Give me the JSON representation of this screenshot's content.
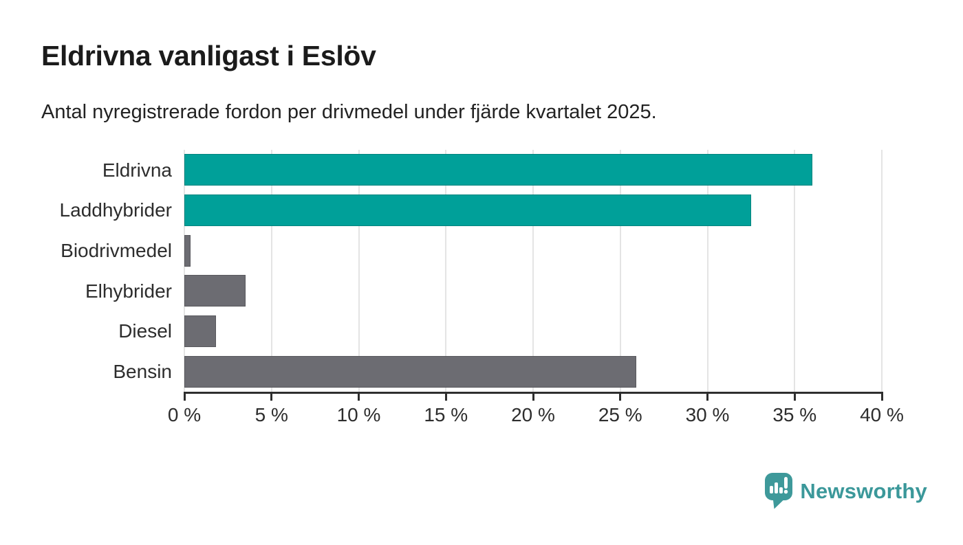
{
  "header": {
    "title": "Eldrivna vanligast i Eslöv",
    "subtitle": "Antal nyregistrerade fordon per drivmedel under fjärde kvartalet 2025."
  },
  "chart_data": {
    "type": "bar",
    "orientation": "horizontal",
    "title": "Eldrivna vanligast i Eslöv",
    "subtitle": "Antal nyregistrerade fordon per drivmedel under fjärde kvartalet 2025.",
    "categories": [
      "Eldrivna",
      "Laddhybrider",
      "Biodrivmedel",
      "Elhybrider",
      "Diesel",
      "Bensin"
    ],
    "values": [
      36.0,
      32.5,
      0.35,
      3.5,
      1.8,
      25.9
    ],
    "unit": "%",
    "xlim": [
      0,
      40
    ],
    "x_ticks": [
      0,
      5,
      10,
      15,
      20,
      25,
      30,
      35,
      40
    ],
    "x_tick_labels": [
      "0 %",
      "5 %",
      "10 %",
      "15 %",
      "20 %",
      "25 %",
      "30 %",
      "35 %",
      "40 %"
    ],
    "grid": "vertical-only",
    "legend": "none",
    "bar_colors": [
      "#00a099",
      "#00a099",
      "#6c6c72",
      "#6c6c72",
      "#6c6c72",
      "#6c6c72"
    ],
    "highlight_color": "#00a099",
    "default_color": "#6c6c72"
  },
  "style": {
    "grid_color": "#e4e4e4",
    "axis_color": "#2e2e2e",
    "label_color": "#2d2d2d",
    "title_color": "#1b1b1b",
    "background": "#ffffff"
  },
  "footer": {
    "logo_text": "Newsworthy",
    "logo_color": "#3b989a"
  }
}
